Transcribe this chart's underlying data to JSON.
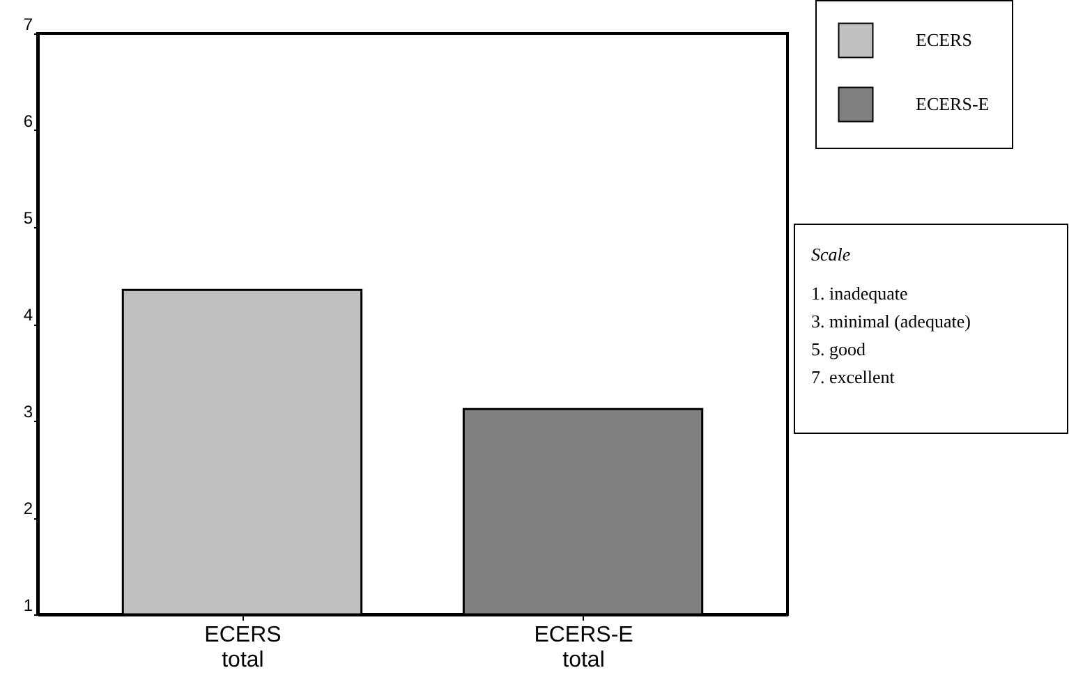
{
  "chart_data": {
    "type": "bar",
    "categories": [
      "ECERS total",
      "ECERS-E total"
    ],
    "series": [
      {
        "name": "ECERS",
        "color": "#c0c0c0",
        "values": [
          4.35,
          null
        ]
      },
      {
        "name": "ECERS-E",
        "color": "#808080",
        "values": [
          null,
          3.12
        ]
      }
    ],
    "ylim": [
      1,
      7
    ],
    "yticks": [
      1,
      2,
      3,
      4,
      5,
      6,
      7
    ],
    "grid": false,
    "legend": "top right",
    "annotations": [
      "Scale",
      "1.  inadequate",
      "3.  minimal (adequate)",
      "5.  good",
      "7.  excellent"
    ]
  }
}
